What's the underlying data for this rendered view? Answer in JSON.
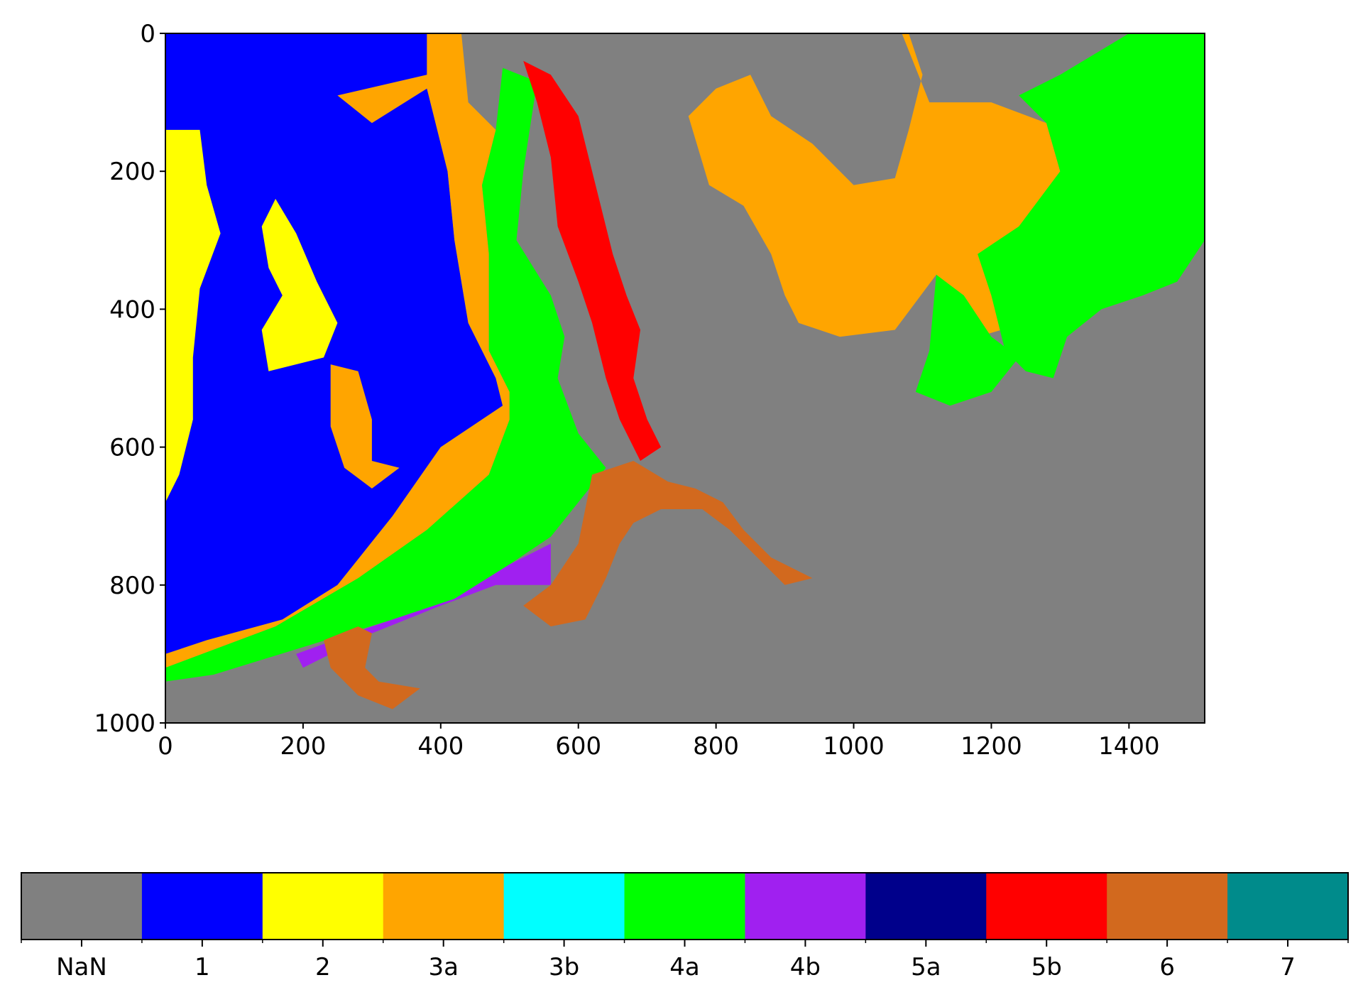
{
  "chart_data": [
    {
      "type": "heatmap",
      "title": "",
      "xlabel": "",
      "ylabel": "",
      "xlim": [
        0,
        1510
      ],
      "ylim": [
        1000,
        0
      ],
      "x_ticks": [
        "0",
        "200",
        "400",
        "600",
        "800",
        "1000",
        "1200",
        "1400"
      ],
      "y_ticks": [
        "0",
        "200",
        "400",
        "600",
        "800",
        "1000"
      ],
      "grid": false,
      "classes": [
        "NaN",
        "1",
        "2",
        "3a",
        "3b",
        "4a",
        "4b",
        "5a",
        "5b",
        "6",
        "7"
      ],
      "class_colors": {
        "NaN": "#808080",
        "1": "#0000ff",
        "2": "#ffff00",
        "3a": "#ffa500",
        "3b": "#00ffff",
        "4a": "#00ff00",
        "4b": "#a020f0",
        "5a": "#00008b",
        "5b": "#ff0000",
        "6": "#d2691e",
        "7": "#008b8b"
      },
      "regions": [
        {
          "class": "1",
          "points": [
            [
              0,
              0
            ],
            [
              380,
              0
            ],
            [
              380,
              80
            ],
            [
              410,
              200
            ],
            [
              420,
              300
            ],
            [
              440,
              420
            ],
            [
              480,
              500
            ],
            [
              490,
              540
            ],
            [
              400,
              600
            ],
            [
              330,
              700
            ],
            [
              250,
              800
            ],
            [
              170,
              850
            ],
            [
              60,
              880
            ],
            [
              0,
              900
            ]
          ]
        },
        {
          "class": "2",
          "points": [
            [
              0,
              140
            ],
            [
              50,
              140
            ],
            [
              60,
              220
            ],
            [
              80,
              290
            ],
            [
              50,
              370
            ],
            [
              40,
              470
            ],
            [
              40,
              560
            ],
            [
              20,
              640
            ],
            [
              0,
              680
            ]
          ]
        },
        {
          "class": "2",
          "points": [
            [
              140,
              280
            ],
            [
              160,
              240
            ],
            [
              190,
              290
            ],
            [
              220,
              360
            ],
            [
              250,
              420
            ],
            [
              230,
              470
            ],
            [
              150,
              490
            ],
            [
              140,
              430
            ],
            [
              170,
              380
            ],
            [
              150,
              340
            ]
          ]
        },
        {
          "class": "3a",
          "points": [
            [
              250,
              90
            ],
            [
              380,
              60
            ],
            [
              380,
              0
            ],
            [
              430,
              0
            ],
            [
              440,
              100
            ],
            [
              480,
              140
            ],
            [
              460,
              220
            ],
            [
              470,
              320
            ],
            [
              470,
              400
            ],
            [
              470,
              460
            ],
            [
              500,
              520
            ],
            [
              500,
              560
            ],
            [
              470,
              640
            ],
            [
              380,
              720
            ],
            [
              280,
              790
            ],
            [
              160,
              860
            ],
            [
              0,
              920
            ],
            [
              0,
              900
            ],
            [
              60,
              880
            ],
            [
              170,
              850
            ],
            [
              250,
              800
            ],
            [
              330,
              700
            ],
            [
              400,
              600
            ],
            [
              490,
              540
            ],
            [
              480,
              500
            ],
            [
              440,
              420
            ],
            [
              420,
              300
            ],
            [
              410,
              200
            ],
            [
              380,
              80
            ],
            [
              300,
              130
            ]
          ]
        },
        {
          "class": "3a",
          "points": [
            [
              240,
              480
            ],
            [
              280,
              490
            ],
            [
              300,
              560
            ],
            [
              300,
              620
            ],
            [
              340,
              630
            ],
            [
              300,
              660
            ],
            [
              260,
              630
            ],
            [
              240,
              570
            ]
          ]
        },
        {
          "class": "3a",
          "points": [
            [
              760,
              120
            ],
            [
              800,
              80
            ],
            [
              850,
              60
            ],
            [
              880,
              120
            ],
            [
              940,
              160
            ],
            [
              1000,
              220
            ],
            [
              1060,
              210
            ],
            [
              1080,
              140
            ],
            [
              1100,
              60
            ],
            [
              1080,
              0
            ],
            [
              1000,
              0
            ],
            [
              1070,
              0
            ],
            [
              1110,
              100
            ],
            [
              1200,
              100
            ],
            [
              1280,
              130
            ],
            [
              1300,
              200
            ],
            [
              1240,
              290
            ],
            [
              1240,
              320
            ],
            [
              1280,
              380
            ],
            [
              1250,
              420
            ],
            [
              1180,
              440
            ],
            [
              1160,
              400
            ],
            [
              1120,
              350
            ],
            [
              1060,
              430
            ],
            [
              980,
              440
            ],
            [
              920,
              420
            ],
            [
              900,
              380
            ],
            [
              880,
              320
            ],
            [
              840,
              250
            ],
            [
              790,
              220
            ]
          ]
        },
        {
          "class": "4a",
          "points": [
            [
              490,
              50
            ],
            [
              540,
              70
            ],
            [
              520,
              200
            ],
            [
              510,
              300
            ],
            [
              560,
              380
            ],
            [
              580,
              440
            ],
            [
              570,
              500
            ],
            [
              600,
              580
            ],
            [
              640,
              630
            ],
            [
              600,
              680
            ],
            [
              560,
              730
            ],
            [
              500,
              770
            ],
            [
              420,
              820
            ],
            [
              330,
              850
            ],
            [
              200,
              890
            ],
            [
              70,
              930
            ],
            [
              0,
              940
            ],
            [
              0,
              920
            ],
            [
              160,
              860
            ],
            [
              280,
              790
            ],
            [
              380,
              720
            ],
            [
              470,
              640
            ],
            [
              500,
              560
            ],
            [
              500,
              520
            ],
            [
              470,
              460
            ],
            [
              470,
              400
            ],
            [
              470,
              320
            ],
            [
              460,
              220
            ],
            [
              480,
              140
            ]
          ]
        },
        {
          "class": "4a",
          "points": [
            [
              1300,
              60
            ],
            [
              1400,
              0
            ],
            [
              1510,
              0
            ],
            [
              1510,
              300
            ],
            [
              1470,
              360
            ],
            [
              1420,
              380
            ],
            [
              1360,
              400
            ],
            [
              1310,
              440
            ],
            [
              1290,
              500
            ],
            [
              1250,
              490
            ],
            [
              1220,
              460
            ],
            [
              1200,
              380
            ],
            [
              1180,
              320
            ],
            [
              1240,
              280
            ],
            [
              1300,
              200
            ],
            [
              1280,
              130
            ],
            [
              1240,
              90
            ]
          ]
        },
        {
          "class": "4a",
          "points": [
            [
              1120,
              350
            ],
            [
              1160,
              380
            ],
            [
              1200,
              440
            ],
            [
              1240,
              470
            ],
            [
              1200,
              520
            ],
            [
              1140,
              540
            ],
            [
              1090,
              520
            ],
            [
              1110,
              460
            ]
          ]
        },
        {
          "class": "5b",
          "points": [
            [
              520,
              40
            ],
            [
              560,
              60
            ],
            [
              600,
              120
            ],
            [
              630,
              240
            ],
            [
              650,
              320
            ],
            [
              670,
              380
            ],
            [
              690,
              430
            ],
            [
              680,
              500
            ],
            [
              700,
              560
            ],
            [
              720,
              600
            ],
            [
              690,
              620
            ],
            [
              660,
              560
            ],
            [
              640,
              500
            ],
            [
              620,
              420
            ],
            [
              600,
              360
            ],
            [
              570,
              280
            ],
            [
              560,
              180
            ],
            [
              540,
              100
            ]
          ]
        },
        {
          "class": "4b",
          "points": [
            [
              190,
              900
            ],
            [
              300,
              860
            ],
            [
              420,
              820
            ],
            [
              500,
              770
            ],
            [
              560,
              740
            ],
            [
              560,
              800
            ],
            [
              480,
              800
            ],
            [
              400,
              830
            ],
            [
              300,
              870
            ],
            [
              200,
              920
            ]
          ]
        },
        {
          "class": "6",
          "points": [
            [
              620,
              640
            ],
            [
              680,
              620
            ],
            [
              730,
              650
            ],
            [
              770,
              660
            ],
            [
              810,
              680
            ],
            [
              840,
              720
            ],
            [
              880,
              760
            ],
            [
              940,
              790
            ],
            [
              900,
              800
            ],
            [
              860,
              760
            ],
            [
              820,
              720
            ],
            [
              780,
              690
            ],
            [
              720,
              690
            ],
            [
              680,
              710
            ],
            [
              660,
              740
            ],
            [
              640,
              790
            ],
            [
              610,
              850
            ],
            [
              560,
              860
            ],
            [
              520,
              830
            ],
            [
              560,
              800
            ],
            [
              600,
              740
            ],
            [
              610,
              690
            ]
          ]
        },
        {
          "class": "6",
          "points": [
            [
              230,
              880
            ],
            [
              280,
              860
            ],
            [
              300,
              870
            ],
            [
              290,
              920
            ],
            [
              310,
              940
            ],
            [
              370,
              950
            ],
            [
              330,
              980
            ],
            [
              280,
              960
            ],
            [
              240,
              920
            ]
          ]
        }
      ]
    },
    {
      "type": "colorbar",
      "labels": [
        "NaN",
        "1",
        "2",
        "3a",
        "3b",
        "4a",
        "4b",
        "5a",
        "5b",
        "6",
        "7"
      ]
    }
  ]
}
